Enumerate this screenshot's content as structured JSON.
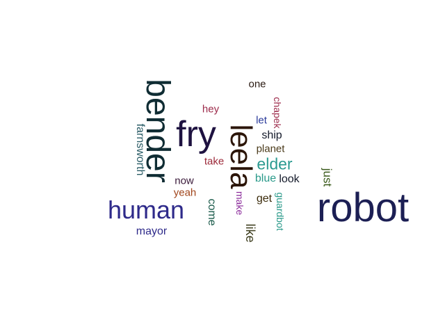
{
  "words": [
    {
      "text": "robot",
      "color": "#1c1f54"
    },
    {
      "text": "bender",
      "color": "#0f2c33"
    },
    {
      "text": "fry",
      "color": "#1e1240"
    },
    {
      "text": "leela",
      "color": "#2b1508"
    },
    {
      "text": "human",
      "color": "#2e2a8a"
    },
    {
      "text": "elder",
      "color": "#2a9a90"
    },
    {
      "text": "farnsworth",
      "color": "#2a5c66"
    },
    {
      "text": "one",
      "color": "#2a1a12"
    },
    {
      "text": "chapek",
      "color": "#9c2a4a"
    },
    {
      "text": "hey",
      "color": "#9c2a4a"
    },
    {
      "text": "let",
      "color": "#2a3a9a"
    },
    {
      "text": "ship",
      "color": "#141a2a"
    },
    {
      "text": "planet",
      "color": "#4a3a1a"
    },
    {
      "text": "take",
      "color": "#9c2a3a"
    },
    {
      "text": "blue",
      "color": "#2a9a8a"
    },
    {
      "text": "look",
      "color": "#141a2a"
    },
    {
      "text": "just",
      "color": "#3a5a1a"
    },
    {
      "text": "now",
      "color": "#3a1a3a"
    },
    {
      "text": "yeah",
      "color": "#a0441a"
    },
    {
      "text": "make",
      "color": "#8a2a9a"
    },
    {
      "text": "get",
      "color": "#3a2a0a"
    },
    {
      "text": "come",
      "color": "#1a5a4a"
    },
    {
      "text": "guardbot",
      "color": "#2a9a8a"
    },
    {
      "text": "mayor",
      "color": "#2e2a8a"
    },
    {
      "text": "like",
      "color": "#3a3a1a"
    }
  ]
}
